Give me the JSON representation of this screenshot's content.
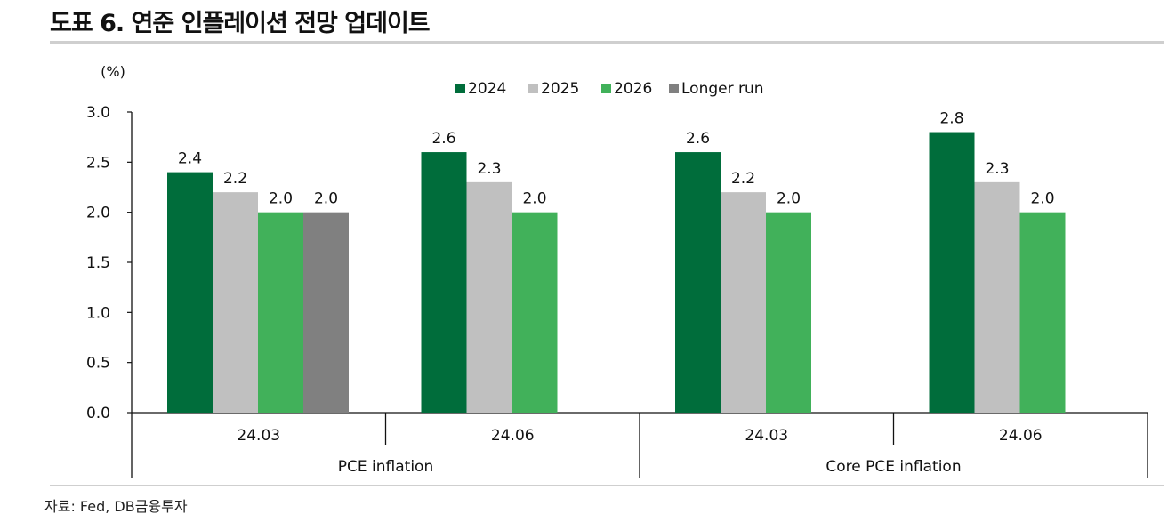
{
  "title": "도표 6. 연준 인플레이션 전망 업데이트",
  "source": "자료: Fed, DB금융투자",
  "chart_data": {
    "type": "bar",
    "unit_label": "(%)",
    "ylim": [
      0.0,
      3.0
    ],
    "y_ticks": [
      "0.0",
      "0.5",
      "1.0",
      "1.5",
      "2.0",
      "2.5",
      "3.0"
    ],
    "legend_position": "top-center",
    "series": [
      {
        "name": "2024",
        "color": "#006d3b"
      },
      {
        "name": "2025",
        "color": "#c0c0c0"
      },
      {
        "name": "2026",
        "color": "#41b15a"
      },
      {
        "name": "Longer run",
        "color": "#808080"
      }
    ],
    "outer_categories": [
      "PCE inflation",
      "Core PCE inflation"
    ],
    "groups": [
      {
        "outer": "PCE inflation",
        "label": "24.03",
        "values": [
          2.4,
          2.2,
          2.0,
          2.0
        ],
        "labels": [
          "2.4",
          "2.2",
          "2.0",
          "2.0"
        ]
      },
      {
        "outer": "PCE inflation",
        "label": "24.06",
        "values": [
          2.6,
          2.3,
          2.0,
          null
        ],
        "labels": [
          "2.6",
          "2.3",
          "2.0",
          null
        ]
      },
      {
        "outer": "Core PCE inflation",
        "label": "24.03",
        "values": [
          2.6,
          2.2,
          2.0,
          null
        ],
        "labels": [
          "2.6",
          "2.2",
          "2.0",
          null
        ]
      },
      {
        "outer": "Core PCE inflation",
        "label": "24.06",
        "values": [
          2.8,
          2.3,
          2.0,
          null
        ],
        "labels": [
          "2.8",
          "2.3",
          "2.0",
          null
        ]
      }
    ]
  }
}
